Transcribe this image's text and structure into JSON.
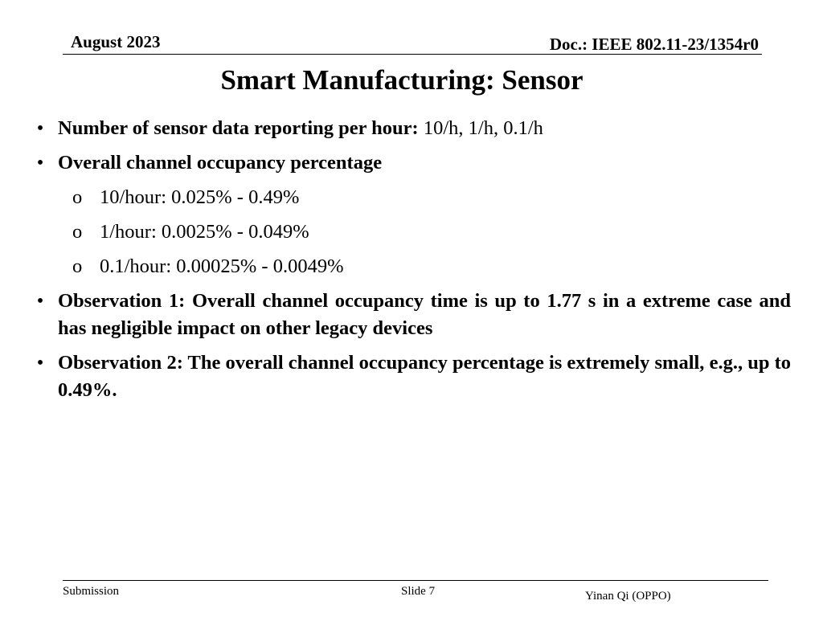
{
  "header": {
    "date": "August 2023",
    "doc": "Doc.: IEEE 802.11-23/1354r0"
  },
  "title": "Smart Manufacturing: Sensor",
  "bullets": [
    {
      "bold": "Number of sensor data reporting per hour:",
      "normal": " 10/h, 1/h, 0.1/h"
    },
    {
      "bold": "Overall channel occupancy percentage",
      "sub_marker": "o",
      "subs": [
        "10/hour: 0.025% - 0.49%",
        "1/hour: 0.0025% - 0.049%",
        "0.1/hour: 0.00025% - 0.0049%"
      ]
    },
    {
      "bold": "Observation 1: Overall channel occupancy time is up to 1.77 s in a extreme case and has negligible impact on other legacy devices"
    },
    {
      "bold": "Observation 2: The overall channel occupancy percentage is extremely small, e.g., up to 0.49%."
    }
  ],
  "bullet_char": "•",
  "footer": {
    "left": "Submission",
    "center": "Slide 7",
    "right": "Yinan Qi (OPPO)"
  }
}
